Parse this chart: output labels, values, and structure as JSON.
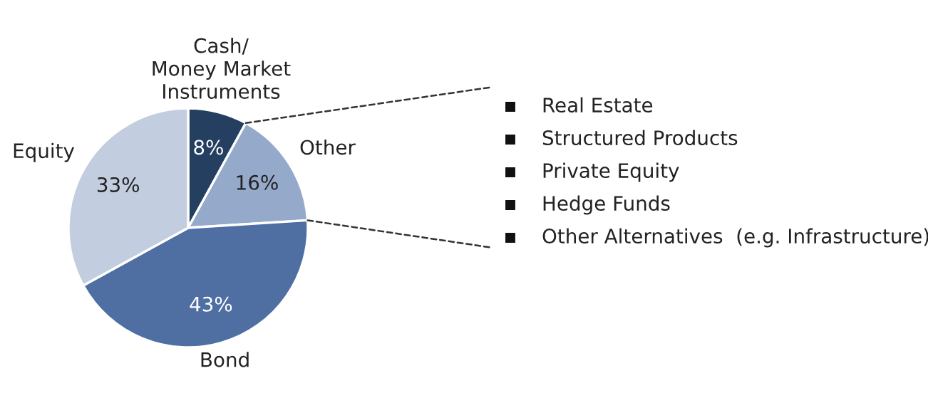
{
  "chart_data": {
    "type": "pie",
    "categories": [
      "Cash/\nMoney Market\nInstruments",
      "Other",
      "Bond",
      "Equity"
    ],
    "values": [
      8,
      16,
      43,
      33
    ],
    "value_labels": [
      "8%",
      "16%",
      "43%",
      "33%"
    ],
    "colors": [
      "#243f60",
      "#95a9cb",
      "#4f6fa2",
      "#c3cde0"
    ],
    "annotations": [
      "Real Estate",
      "Structured Products",
      "Private Equity",
      "Hedge Funds",
      "Other Alternatives  (e.g. Infrastructure)"
    ],
    "legend": false
  }
}
